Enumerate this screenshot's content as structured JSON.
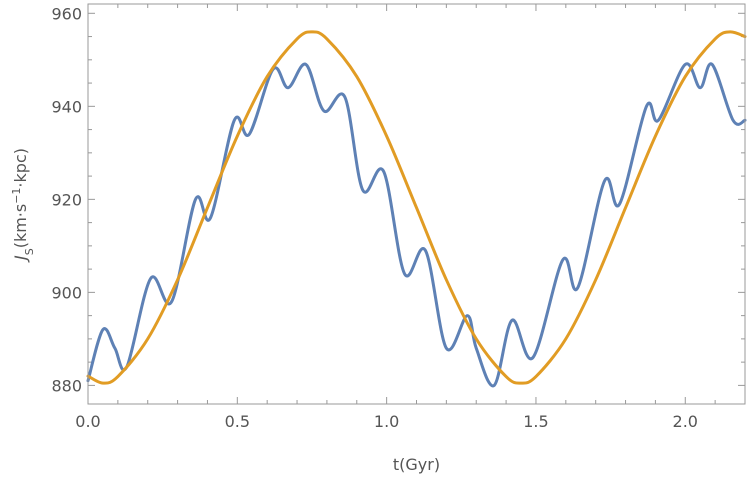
{
  "chart_data": {
    "type": "line",
    "xlabel": "t(Gyr)",
    "ylabel": "J_S(km·s⁻¹·kpc)",
    "ylabel_parts": {
      "main": "J",
      "sub": "S",
      "pre": "(km·s",
      "sup": "−1",
      "post": "·kpc)"
    },
    "xlim": [
      0,
      2.2
    ],
    "ylim": [
      876,
      962
    ],
    "xticks": [
      0.0,
      0.5,
      1.0,
      1.5,
      2.0
    ],
    "xtick_labels": [
      "0.0",
      "0.5",
      "1.0",
      "1.5",
      "2.0"
    ],
    "yticks": [
      880,
      900,
      920,
      940,
      960
    ],
    "ytick_labels": [
      "880",
      "900",
      "920",
      "940",
      "960"
    ],
    "grid": false,
    "series": [
      {
        "color": "#5e81b5",
        "x": [
          0.0,
          0.05,
          0.09,
          0.13,
          0.21,
          0.28,
          0.36,
          0.41,
          0.49,
          0.54,
          0.62,
          0.67,
          0.73,
          0.79,
          0.86,
          0.92,
          0.99,
          1.06,
          1.13,
          1.2,
          1.27,
          1.3,
          1.36,
          1.42,
          1.49,
          1.59,
          1.64,
          1.73,
          1.78,
          1.87,
          1.91,
          2.0,
          2.05,
          2.09,
          2.16,
          2.2
        ],
        "values": [
          881,
          892,
          888,
          884,
          903,
          898,
          920,
          916,
          937,
          934,
          948,
          944,
          949,
          939,
          942,
          922,
          926,
          904,
          909,
          888,
          895,
          888,
          880,
          894,
          886,
          907,
          901,
          924,
          919,
          940,
          937,
          949,
          944,
          949,
          937,
          937
        ]
      },
      {
        "color": "#e19c24",
        "x": [
          0.0,
          0.05,
          0.1,
          0.2,
          0.3,
          0.4,
          0.5,
          0.6,
          0.7,
          0.75,
          0.8,
          0.9,
          1.0,
          1.1,
          1.2,
          1.3,
          1.4,
          1.45,
          1.5,
          1.6,
          1.7,
          1.8,
          1.9,
          2.0,
          2.1,
          2.15,
          2.2
        ],
        "values": [
          882,
          880.5,
          881.9,
          890.0,
          902.7,
          918.2,
          933.6,
          946.4,
          954.5,
          956,
          954.5,
          946.4,
          933.6,
          918.2,
          902.7,
          890.0,
          881.9,
          880.5,
          881.9,
          890.0,
          902.7,
          918.2,
          933.6,
          946.4,
          954.5,
          956,
          955
        ]
      }
    ]
  }
}
